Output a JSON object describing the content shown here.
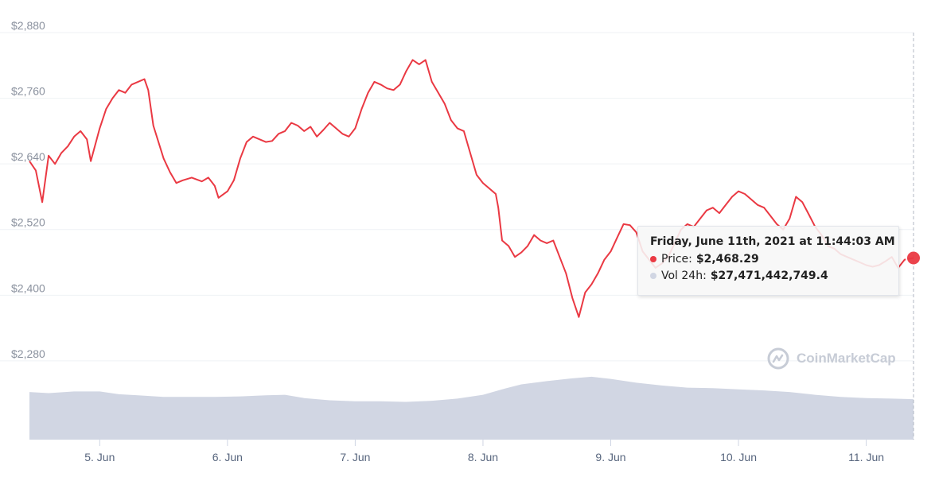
{
  "chart_data": {
    "type": "line",
    "y_axis": {
      "ticks": [
        "$2,280",
        "$2,400",
        "$2,520",
        "$2,640",
        "$2,760",
        "$2,880"
      ],
      "range": [
        2136,
        2880
      ]
    },
    "x_axis": {
      "ticks": [
        "5. Jun",
        "6. Jun",
        "7. Jun",
        "8. Jun",
        "9. Jun",
        "10. Jun",
        "11. Jun"
      ],
      "range_days": [
        4.45,
        11.37
      ]
    },
    "grid": "horizontal",
    "series": [
      {
        "name": "Price",
        "color": "#ea3943",
        "points": [
          [
            4.45,
            2645
          ],
          [
            4.5,
            2628
          ],
          [
            4.55,
            2570
          ],
          [
            4.6,
            2655
          ],
          [
            4.65,
            2640
          ],
          [
            4.7,
            2660
          ],
          [
            4.75,
            2672
          ],
          [
            4.8,
            2690
          ],
          [
            4.85,
            2700
          ],
          [
            4.9,
            2685
          ],
          [
            4.93,
            2645
          ],
          [
            5.0,
            2705
          ],
          [
            5.05,
            2740
          ],
          [
            5.1,
            2760
          ],
          [
            5.15,
            2775
          ],
          [
            5.2,
            2770
          ],
          [
            5.25,
            2785
          ],
          [
            5.3,
            2790
          ],
          [
            5.35,
            2795
          ],
          [
            5.38,
            2775
          ],
          [
            5.42,
            2710
          ],
          [
            5.5,
            2650
          ],
          [
            5.55,
            2625
          ],
          [
            5.6,
            2605
          ],
          [
            5.65,
            2610
          ],
          [
            5.72,
            2615
          ],
          [
            5.8,
            2608
          ],
          [
            5.85,
            2615
          ],
          [
            5.9,
            2600
          ],
          [
            5.93,
            2578
          ],
          [
            6.0,
            2590
          ],
          [
            6.05,
            2610
          ],
          [
            6.1,
            2650
          ],
          [
            6.15,
            2680
          ],
          [
            6.2,
            2690
          ],
          [
            6.25,
            2685
          ],
          [
            6.3,
            2680
          ],
          [
            6.35,
            2682
          ],
          [
            6.4,
            2695
          ],
          [
            6.45,
            2700
          ],
          [
            6.5,
            2715
          ],
          [
            6.55,
            2710
          ],
          [
            6.6,
            2700
          ],
          [
            6.65,
            2708
          ],
          [
            6.7,
            2690
          ],
          [
            6.75,
            2702
          ],
          [
            6.8,
            2715
          ],
          [
            6.85,
            2705
          ],
          [
            6.9,
            2695
          ],
          [
            6.95,
            2690
          ],
          [
            7.0,
            2705
          ],
          [
            7.05,
            2740
          ],
          [
            7.1,
            2770
          ],
          [
            7.15,
            2790
          ],
          [
            7.2,
            2785
          ],
          [
            7.25,
            2778
          ],
          [
            7.3,
            2775
          ],
          [
            7.35,
            2785
          ],
          [
            7.4,
            2810
          ],
          [
            7.45,
            2830
          ],
          [
            7.5,
            2822
          ],
          [
            7.55,
            2830
          ],
          [
            7.6,
            2790
          ],
          [
            7.65,
            2770
          ],
          [
            7.7,
            2750
          ],
          [
            7.75,
            2720
          ],
          [
            7.8,
            2705
          ],
          [
            7.85,
            2700
          ],
          [
            7.9,
            2660
          ],
          [
            7.95,
            2620
          ],
          [
            8.0,
            2605
          ],
          [
            8.05,
            2595
          ],
          [
            8.1,
            2585
          ],
          [
            8.12,
            2560
          ],
          [
            8.15,
            2500
          ],
          [
            8.2,
            2490
          ],
          [
            8.25,
            2470
          ],
          [
            8.3,
            2478
          ],
          [
            8.35,
            2490
          ],
          [
            8.4,
            2510
          ],
          [
            8.45,
            2500
          ],
          [
            8.5,
            2495
          ],
          [
            8.55,
            2500
          ],
          [
            8.6,
            2470
          ],
          [
            8.65,
            2440
          ],
          [
            8.7,
            2395
          ],
          [
            8.75,
            2360
          ],
          [
            8.8,
            2405
          ],
          [
            8.85,
            2420
          ],
          [
            8.9,
            2440
          ],
          [
            8.95,
            2465
          ],
          [
            9.0,
            2480
          ],
          [
            9.05,
            2505
          ],
          [
            9.1,
            2530
          ],
          [
            9.15,
            2528
          ],
          [
            9.2,
            2515
          ],
          [
            9.25,
            2480
          ],
          [
            9.3,
            2465
          ],
          [
            9.35,
            2450
          ],
          [
            9.4,
            2458
          ],
          [
            9.45,
            2470
          ],
          [
            9.5,
            2495
          ],
          [
            9.55,
            2520
          ],
          [
            9.6,
            2530
          ],
          [
            9.65,
            2525
          ],
          [
            9.7,
            2540
          ],
          [
            9.75,
            2555
          ],
          [
            9.8,
            2560
          ],
          [
            9.85,
            2550
          ],
          [
            9.9,
            2565
          ],
          [
            9.95,
            2580
          ],
          [
            10.0,
            2590
          ],
          [
            10.05,
            2585
          ],
          [
            10.1,
            2575
          ],
          [
            10.15,
            2565
          ],
          [
            10.2,
            2560
          ],
          [
            10.25,
            2545
          ],
          [
            10.3,
            2530
          ],
          [
            10.35,
            2520
          ],
          [
            10.4,
            2540
          ],
          [
            10.45,
            2580
          ],
          [
            10.5,
            2570
          ],
          [
            10.55,
            2548
          ],
          [
            10.6,
            2525
          ],
          [
            10.65,
            2510
          ],
          [
            10.7,
            2490
          ],
          [
            10.75,
            2485
          ],
          [
            10.8,
            2475
          ],
          [
            10.85,
            2470
          ],
          [
            10.9,
            2465
          ],
          [
            10.95,
            2460
          ],
          [
            11.0,
            2455
          ],
          [
            11.05,
            2452
          ],
          [
            11.1,
            2455
          ],
          [
            11.15,
            2462
          ],
          [
            11.2,
            2470
          ],
          [
            11.25,
            2450
          ],
          [
            11.3,
            2465
          ],
          [
            11.37,
            2468
          ]
        ]
      },
      {
        "name": "Vol 24h",
        "color": "#d1d6e3",
        "points": [
          [
            4.45,
            2223
          ],
          [
            4.6,
            2221
          ],
          [
            4.8,
            2224
          ],
          [
            5.0,
            2224
          ],
          [
            5.15,
            2219
          ],
          [
            5.3,
            2217
          ],
          [
            5.5,
            2214
          ],
          [
            5.7,
            2214
          ],
          [
            5.9,
            2214
          ],
          [
            6.1,
            2215
          ],
          [
            6.3,
            2217
          ],
          [
            6.45,
            2218
          ],
          [
            6.6,
            2212
          ],
          [
            6.8,
            2208
          ],
          [
            7.0,
            2206
          ],
          [
            7.2,
            2206
          ],
          [
            7.4,
            2205
          ],
          [
            7.6,
            2207
          ],
          [
            7.8,
            2211
          ],
          [
            8.0,
            2218
          ],
          [
            8.15,
            2228
          ],
          [
            8.3,
            2237
          ],
          [
            8.5,
            2243
          ],
          [
            8.7,
            2248
          ],
          [
            8.85,
            2251
          ],
          [
            9.0,
            2247
          ],
          [
            9.2,
            2240
          ],
          [
            9.4,
            2235
          ],
          [
            9.6,
            2231
          ],
          [
            9.8,
            2230
          ],
          [
            10.0,
            2228
          ],
          [
            10.2,
            2226
          ],
          [
            10.4,
            2223
          ],
          [
            10.6,
            2218
          ],
          [
            10.8,
            2214
          ],
          [
            11.0,
            2212
          ],
          [
            11.2,
            2211
          ],
          [
            11.37,
            2210
          ]
        ]
      }
    ],
    "tooltip": {
      "title": "Friday, June 11th, 2021 at 11:44:03 AM",
      "price_label": "Price:",
      "price_value": "$2,468.29",
      "vol_label": "Vol 24h:",
      "vol_value": "$27,471,442,749.4"
    },
    "watermark": "CoinMarketCap"
  }
}
